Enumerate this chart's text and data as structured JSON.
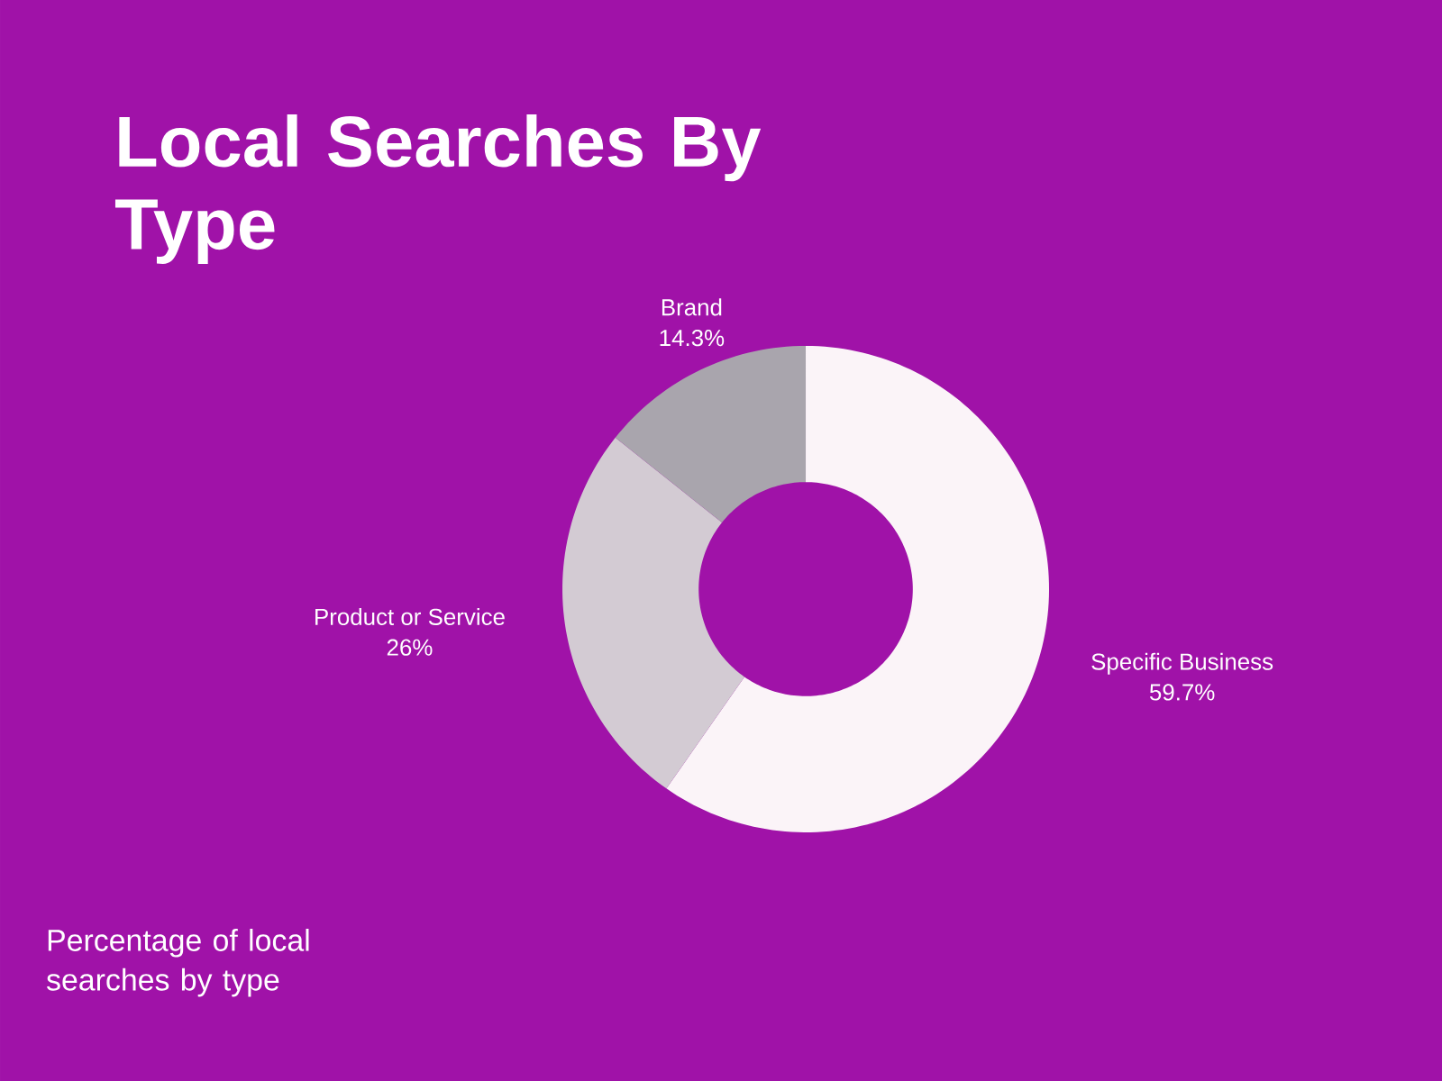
{
  "chart_data": {
    "type": "donut",
    "title": "Local Searches By Type",
    "categories": [
      "Specific Business",
      "Product or Service",
      "Brand"
    ],
    "values": [
      59.7,
      26,
      14.3
    ],
    "value_labels": [
      "59.7%",
      "26%",
      "14.3%"
    ],
    "colors": [
      "#fbf4f8",
      "#d3cbd3",
      "#a9a5ad"
    ],
    "annotations": [
      "Percentage of local searches by type"
    ]
  }
}
